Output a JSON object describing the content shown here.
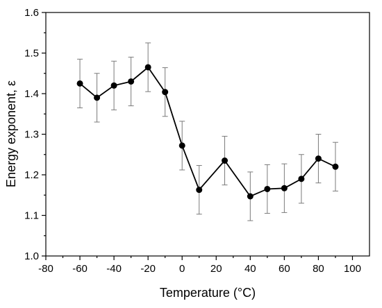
{
  "chart_data": {
    "type": "scatter",
    "title": "",
    "xlabel": "Temperature (°C)",
    "ylabel": "Energy exponent, ε",
    "xlim": [
      -80,
      110
    ],
    "ylim": [
      1.0,
      1.6
    ],
    "xticks": [
      -80,
      -60,
      -40,
      -20,
      0,
      20,
      40,
      60,
      80,
      100
    ],
    "yticks": [
      1.0,
      1.1,
      1.2,
      1.3,
      1.4,
      1.5,
      1.6
    ],
    "grid": false,
    "legend": "none",
    "series": [
      {
        "x": [
          -60,
          -50,
          -40,
          -30,
          -20,
          -10,
          0,
          10,
          25,
          40,
          50,
          60,
          70,
          80,
          90
        ],
        "y": [
          1.425,
          1.39,
          1.42,
          1.43,
          1.465,
          1.404,
          1.272,
          1.163,
          1.235,
          1.147,
          1.165,
          1.167,
          1.19,
          1.24,
          1.22
        ],
        "error": [
          0.06,
          0.06,
          0.06,
          0.06,
          0.06,
          0.06,
          0.06,
          0.06,
          0.06,
          0.06,
          0.06,
          0.06,
          0.06,
          0.06,
          0.06
        ],
        "color": "#000000",
        "connected": true
      }
    ]
  }
}
